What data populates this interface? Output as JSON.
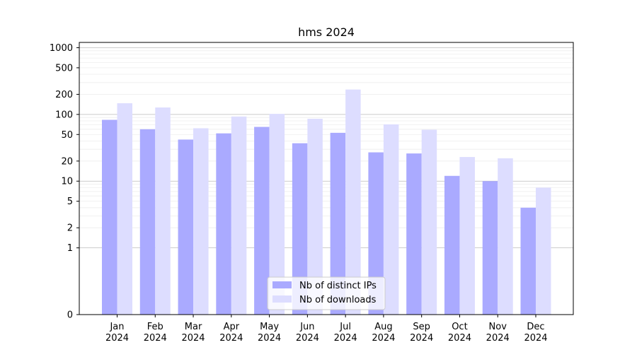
{
  "chart_data": {
    "type": "bar",
    "title": "hms 2024",
    "yscale": "symlog",
    "y_ticks": [
      0,
      1,
      2,
      5,
      10,
      20,
      50,
      100,
      200,
      500,
      1000
    ],
    "ylim": [
      0,
      1200
    ],
    "grid": "horizontal",
    "legend_placement": "lower-center",
    "categories": [
      "Jan\n2024",
      "Feb\n2024",
      "Mar\n2024",
      "Apr\n2024",
      "May\n2024",
      "Jun\n2024",
      "Jul\n2024",
      "Aug\n2024",
      "Sep\n2024",
      "Oct\n2024",
      "Nov\n2024",
      "Dec\n2024"
    ],
    "series": [
      {
        "name": "Nb of distinct IPs",
        "color": "#aaaaff",
        "values": [
          83,
          60,
          42,
          52,
          65,
          37,
          53,
          27,
          26,
          12,
          10,
          4
        ]
      },
      {
        "name": "Nb of downloads",
        "color": "#ddddff",
        "values": [
          147,
          127,
          62,
          93,
          102,
          86,
          236,
          71,
          59,
          23,
          22,
          8
        ]
      }
    ]
  }
}
